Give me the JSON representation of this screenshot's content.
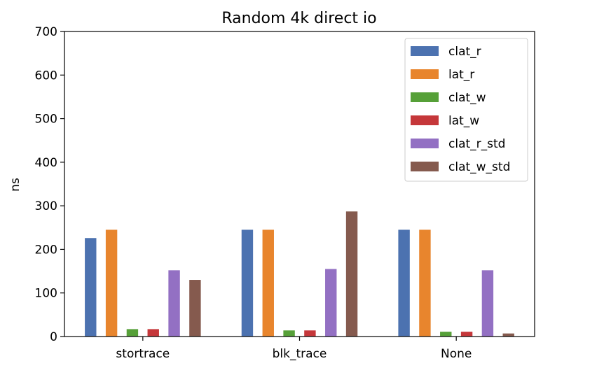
{
  "chart_data": {
    "type": "bar",
    "title": "Random 4k direct io",
    "xlabel": "",
    "ylabel": "ns",
    "ylim": [
      0,
      700
    ],
    "yticks": [
      0,
      100,
      200,
      300,
      400,
      500,
      600,
      700
    ],
    "categories": [
      "stortrace",
      "blk_trace",
      "None"
    ],
    "legend_position": "top-right",
    "grid": false,
    "series": [
      {
        "name": "clat_r",
        "color": "#4c72b0",
        "values": [
          226,
          245,
          245
        ]
      },
      {
        "name": "lat_r",
        "color": "#e8852d",
        "values": [
          245,
          245,
          245
        ]
      },
      {
        "name": "clat_w",
        "color": "#56a038",
        "values": [
          17,
          14,
          11
        ]
      },
      {
        "name": "lat_w",
        "color": "#c5373a",
        "values": [
          17,
          14,
          11
        ]
      },
      {
        "name": "clat_r_std",
        "color": "#9370c3",
        "values": [
          152,
          155,
          152
        ]
      },
      {
        "name": "clat_w_std",
        "color": "#855a4e",
        "values": [
          130,
          287,
          7
        ]
      }
    ]
  }
}
